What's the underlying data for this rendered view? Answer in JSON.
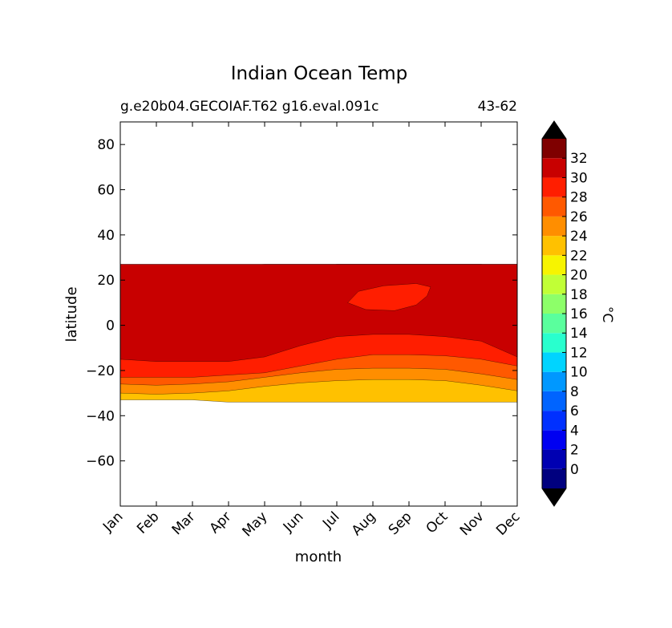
{
  "chart_data": {
    "type": "heatmap",
    "title": "Indian Ocean Temp",
    "subtitle_left": "g.e20b04.GECOIAF.T62 g16.eval.091c",
    "subtitle_right": "43-62",
    "xlabel": "month",
    "ylabel": "latitude",
    "x_categories": [
      "Jan",
      "Feb",
      "Mar",
      "Apr",
      "May",
      "Jun",
      "Jul",
      "Aug",
      "Sep",
      "Oct",
      "Nov",
      "Dec"
    ],
    "ylim": [
      -80,
      90
    ],
    "y_ticks": [
      "80",
      "60",
      "40",
      "20",
      "0",
      "−20",
      "−40",
      "−60"
    ],
    "y_tick_values": [
      80,
      60,
      40,
      20,
      0,
      -20,
      -40,
      -60
    ],
    "data_lat_range": [
      -34,
      27
    ],
    "colorbar": {
      "label": "°C",
      "levels": [
        -2,
        0,
        2,
        4,
        6,
        8,
        10,
        12,
        14,
        16,
        18,
        20,
        22,
        24,
        26,
        28,
        30,
        32,
        34
      ],
      "tick_labels": [
        "0",
        "2",
        "4",
        "6",
        "8",
        "10",
        "12",
        "14",
        "16",
        "18",
        "20",
        "22",
        "24",
        "26",
        "28",
        "30",
        "32"
      ],
      "tick_values": [
        0,
        2,
        4,
        6,
        8,
        10,
        12,
        14,
        16,
        18,
        20,
        22,
        24,
        26,
        28,
        30,
        32
      ],
      "colors": [
        "#00007f",
        "#0000b2",
        "#0000f1",
        "#0030ff",
        "#0064ff",
        "#0098ff",
        "#00d4ff",
        "#29ffce",
        "#5aff9d",
        "#8dff69",
        "#c1ff36",
        "#f7f400",
        "#ffc100",
        "#ff8e00",
        "#ff5900",
        "#ff1e00",
        "#c80000",
        "#7f0000"
      ],
      "under_color": "#000000",
      "over_color": "#000000"
    },
    "contour_boundaries": [
      {
        "level": 22,
        "lat_by_month": [
          27,
          27,
          27,
          27,
          27,
          27,
          27,
          27,
          27,
          27,
          27,
          27
        ],
        "lat_south_by_month": [
          -33,
          -33,
          -33,
          -34,
          -34,
          -34,
          -34,
          -34,
          -34,
          -34,
          -34,
          -34
        ]
      },
      {
        "level": 24,
        "lat_by_month": [
          25,
          23.5,
          24,
          26,
          27,
          27,
          27,
          27,
          27,
          27,
          27,
          27
        ],
        "lat_south_by_month": [
          -30,
          -30.5,
          -30,
          -29,
          -27,
          -25.5,
          -24.5,
          -24,
          -24,
          -24.5,
          -26.5,
          -29
        ]
      },
      {
        "level": 26,
        "lat_by_month": [
          16,
          15,
          12,
          13,
          18,
          24,
          27,
          27,
          27,
          27,
          27,
          24
        ],
        "lat_south_by_month": [
          -26,
          -26.5,
          -26,
          -25,
          -23,
          -21,
          -19.5,
          -19,
          -19,
          -19.5,
          -21.5,
          -24
        ]
      },
      {
        "level": 28,
        "lat_by_month": [
          6,
          6,
          6,
          5,
          5,
          4.5,
          5,
          5,
          5,
          5,
          4.5,
          5
        ],
        "lat_south_by_month": [
          -23,
          -23,
          -23,
          -22,
          -21,
          -18,
          -15,
          -13,
          -13,
          -13.5,
          -15,
          -18
        ]
      },
      {
        "level": 30,
        "lat_by_month": [
          27,
          27,
          27,
          27,
          27,
          27,
          27,
          27,
          27,
          27,
          27,
          27
        ],
        "lat_south_by_month": [
          -15,
          -16,
          -16,
          -16,
          -14,
          -9,
          -5,
          -4,
          -4,
          -5,
          -7,
          -14
        ]
      }
    ]
  }
}
